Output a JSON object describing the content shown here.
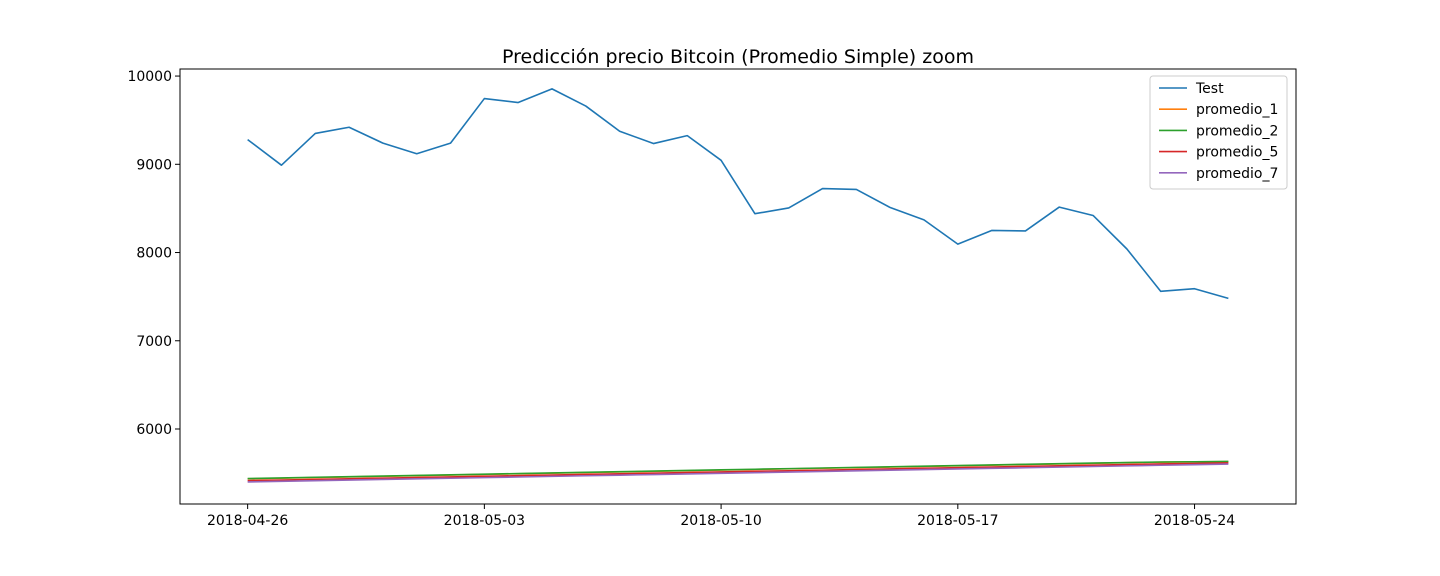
{
  "chart_data": {
    "type": "line",
    "title": "Predicción precio Bitcoin (Promedio Simple) zoom",
    "xlabel": "",
    "ylabel": "",
    "x_tick_labels": [
      "2018-04-26",
      "2018-05-03",
      "2018-05-10",
      "2018-05-17",
      "2018-05-24"
    ],
    "x": [
      "2018-04-26",
      "2018-04-27",
      "2018-04-28",
      "2018-04-29",
      "2018-04-30",
      "2018-05-01",
      "2018-05-02",
      "2018-05-03",
      "2018-05-04",
      "2018-05-05",
      "2018-05-06",
      "2018-05-07",
      "2018-05-08",
      "2018-05-09",
      "2018-05-10",
      "2018-05-11",
      "2018-05-12",
      "2018-05-13",
      "2018-05-14",
      "2018-05-15",
      "2018-05-16",
      "2018-05-17",
      "2018-05-18",
      "2018-05-19",
      "2018-05-20",
      "2018-05-21",
      "2018-05-22",
      "2018-05-23",
      "2018-05-24",
      "2018-05-25"
    ],
    "xlim": [
      "2018-04-24",
      "2018-05-27"
    ],
    "ylim": [
      5150,
      10080
    ],
    "y_ticks": [
      6000,
      7000,
      8000,
      9000,
      10000
    ],
    "grid": false,
    "legend_position": "top-right",
    "series": [
      {
        "name": "Test",
        "color": "#1f77b4",
        "values": [
          9280,
          8990,
          9350,
          9420,
          9240,
          9120,
          9240,
          9745,
          9700,
          9855,
          9660,
          9375,
          9235,
          9325,
          9045,
          8440,
          8505,
          8725,
          8715,
          8510,
          8370,
          8095,
          8250,
          8245,
          8515,
          8420,
          8040,
          7560,
          7590,
          7480
        ]
      },
      {
        "name": "promedio_1",
        "color": "#ff7f0e",
        "values": [
          5435,
          5442,
          5450,
          5457,
          5464,
          5471,
          5478,
          5485,
          5492,
          5499,
          5506,
          5513,
          5520,
          5527,
          5534,
          5541,
          5548,
          5555,
          5562,
          5569,
          5576,
          5583,
          5590,
          5597,
          5604,
          5611,
          5618,
          5624,
          5628,
          5630
        ]
      },
      {
        "name": "promedio_2",
        "color": "#2ca02c",
        "values": [
          5438,
          5445,
          5453,
          5460,
          5467,
          5474,
          5481,
          5488,
          5495,
          5502,
          5509,
          5516,
          5523,
          5530,
          5537,
          5544,
          5551,
          5558,
          5565,
          5572,
          5579,
          5586,
          5593,
          5600,
          5607,
          5614,
          5620,
          5626,
          5629,
          5632
        ]
      },
      {
        "name": "promedio_5",
        "color": "#d62728",
        "values": [
          5415,
          5422,
          5429,
          5436,
          5443,
          5450,
          5457,
          5464,
          5471,
          5478,
          5485,
          5492,
          5499,
          5506,
          5513,
          5520,
          5527,
          5534,
          5541,
          5548,
          5555,
          5562,
          5569,
          5576,
          5583,
          5590,
          5597,
          5604,
          5610,
          5615
        ]
      },
      {
        "name": "promedio_7",
        "color": "#9467bd",
        "values": [
          5400,
          5407,
          5414,
          5421,
          5428,
          5435,
          5442,
          5449,
          5456,
          5463,
          5470,
          5477,
          5484,
          5491,
          5498,
          5505,
          5512,
          5519,
          5526,
          5533,
          5540,
          5547,
          5554,
          5561,
          5568,
          5575,
          5582,
          5589,
          5596,
          5603
        ]
      }
    ]
  }
}
